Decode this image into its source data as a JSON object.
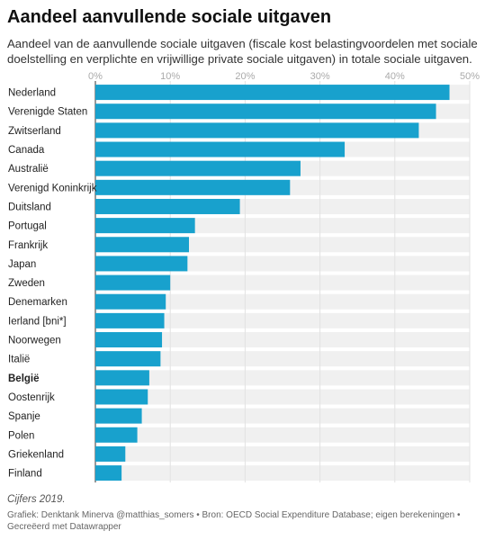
{
  "title": "Aandeel aanvullende sociale uitgaven",
  "subtitle": "Aandeel van de aanvullende sociale uitgaven (fiscale kost belastingvoordelen met sociale doelstelling en verplichte en vrijwillige private sociale uitgaven) in totale sociale uitgaven.",
  "note": "Cijfers 2019.",
  "credit": "Grafiek: Denktank Minerva @matthias_somers • Bron: OECD Social Expenditure Database; eigen berekeningen • Gecreëerd met Datawrapper",
  "colors": {
    "bar": "#18a1cd",
    "track": "#f0f0f0",
    "grid": "#e2e2e2",
    "tick": "#aaaaaa"
  },
  "chart_data": {
    "type": "bar",
    "orientation": "horizontal",
    "value_axis_ticks": [
      "0%",
      "10%",
      "20%",
      "30%",
      "40%",
      "50%"
    ],
    "xlim": [
      0,
      50
    ],
    "highlight": "België",
    "categories": [
      "Nederland",
      "Verenigde Staten",
      "Zwitserland",
      "Canada",
      "Australië",
      "Verenigd Koninkrijk",
      "Duitsland",
      "Portugal",
      "Frankrijk",
      "Japan",
      "Zweden",
      "Denemarken",
      "Ierland [bni*]",
      "Noorwegen",
      "Italië",
      "België",
      "Oostenrijk",
      "Spanje",
      "Polen",
      "Griekenland",
      "Finland"
    ],
    "values": [
      47.3,
      45.5,
      43.2,
      33.3,
      27.4,
      26.0,
      19.3,
      13.3,
      12.5,
      12.3,
      10.0,
      9.4,
      9.2,
      8.9,
      8.7,
      7.2,
      7.0,
      6.2,
      5.6,
      4.0,
      3.5
    ]
  }
}
